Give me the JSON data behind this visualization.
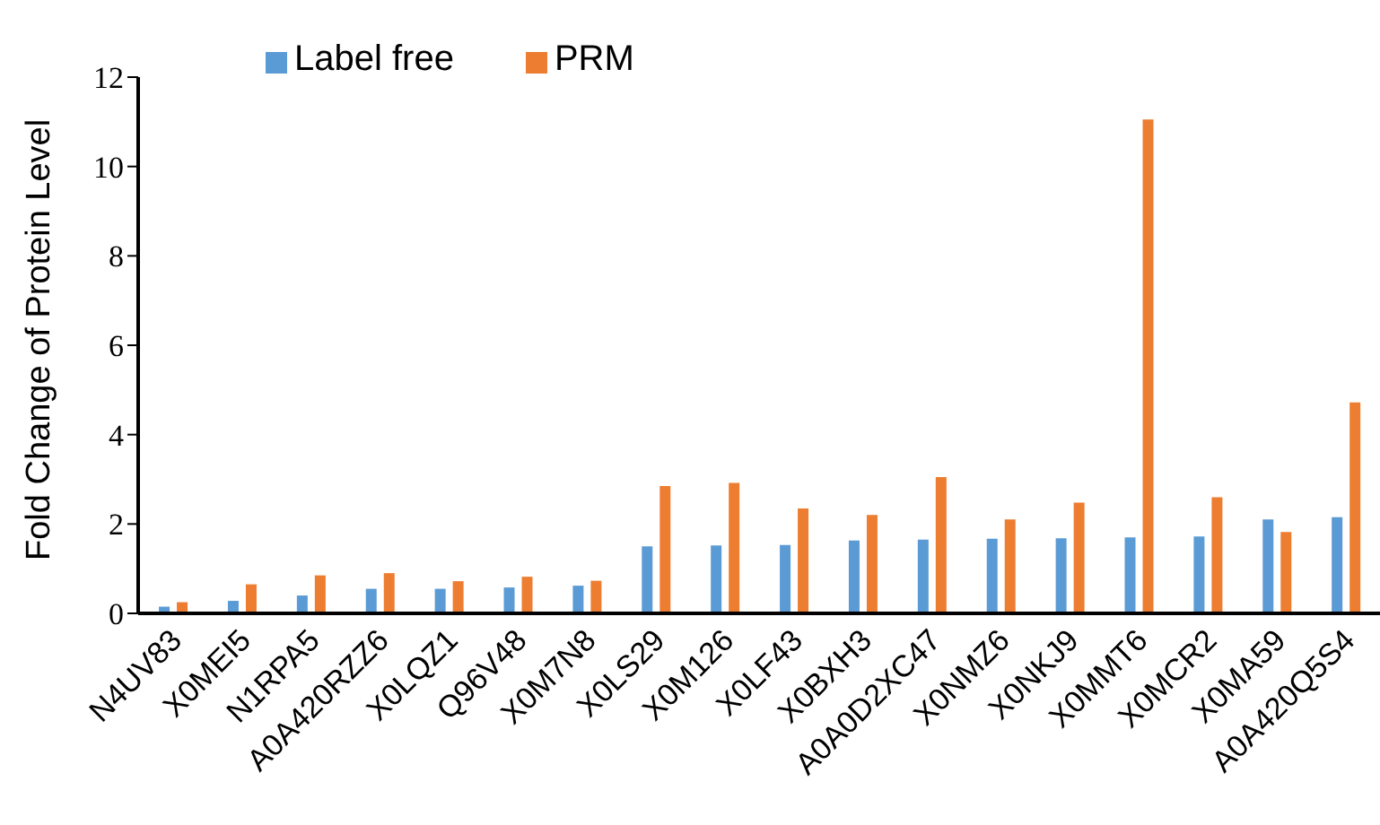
{
  "chart_data": {
    "type": "bar",
    "ylabel": "Fold Change of Protein Level",
    "categories": [
      "N4UV83",
      "X0MEI5",
      "N1RPA5",
      "A0A420RZZ6",
      "X0LQZ1",
      "Q96V48",
      "X0M7N8",
      "X0LS29",
      "X0M126",
      "X0LF43",
      "X0BXH3",
      "A0A0D2XC47",
      "X0NMZ6",
      "X0NKJ9",
      "X0MMT6",
      "X0MCR2",
      "X0MA59",
      "A0A420Q5S4"
    ],
    "series": [
      {
        "name": "Label free",
        "color": "#5b9bd5",
        "values": [
          0.15,
          0.28,
          0.4,
          0.55,
          0.55,
          0.58,
          0.62,
          1.5,
          1.52,
          1.53,
          1.63,
          1.65,
          1.67,
          1.68,
          1.7,
          1.72,
          2.1,
          2.15
        ]
      },
      {
        "name": "PRM",
        "color": "#ed7d31",
        "values": [
          0.25,
          0.65,
          0.85,
          0.9,
          0.72,
          0.82,
          0.73,
          2.85,
          2.92,
          2.35,
          2.2,
          3.05,
          2.1,
          2.48,
          11.05,
          2.6,
          1.82,
          4.72
        ]
      }
    ],
    "ylim": [
      0,
      12
    ],
    "yticks": [
      0,
      2,
      4,
      6,
      8,
      10,
      12
    ],
    "grid": false,
    "legend": "top"
  }
}
